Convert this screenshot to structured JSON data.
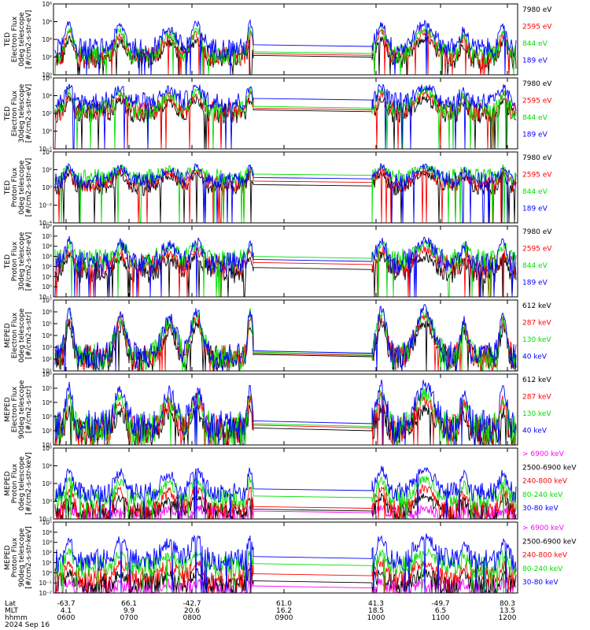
{
  "colors": {
    "black": "#000000",
    "red": "#ff0000",
    "green": "#00e000",
    "blue": "#0000ff",
    "magenta": "#ff00ff"
  },
  "x_axis": {
    "row_labels": [
      "Lat",
      "MLT",
      "hhmm"
    ],
    "date": "2024 Sep 16",
    "ticks": [
      {
        "lat": "-63.7",
        "mlt": "4.1",
        "hhmm": "0600"
      },
      {
        "lat": "66.1",
        "mlt": "9.9",
        "hhmm": "0700"
      },
      {
        "lat": "-42.7",
        "mlt": "20.6",
        "hhmm": "0800"
      },
      {
        "lat": "61.0",
        "mlt": "16.2",
        "hhmm": "0900"
      },
      {
        "lat": "41.3",
        "mlt": "18.5",
        "hhmm": "1000"
      },
      {
        "lat": "-49.7",
        "mlt": "6.5",
        "hhmm": "1100"
      },
      {
        "lat": "80.3",
        "mlt": "13.5",
        "hhmm": "1200"
      }
    ]
  },
  "chart_data": [
    {
      "type": "line",
      "ylabel": [
        "TED",
        "Electron Flux",
        "0deg telescope",
        "[#/cm2-s-str-eV]"
      ],
      "ylim_exp": [
        0,
        8
      ],
      "ytick_labels": [
        "10⁰",
        "10²",
        "10⁴",
        "10⁶",
        "10⁸"
      ],
      "series": [
        {
          "name": "7980 eV",
          "color": "black",
          "level": 1.8,
          "peak": 4.0
        },
        {
          "name": "2595 eV",
          "color": "red",
          "level": 2.0,
          "peak": 4.8
        },
        {
          "name": "844 eV",
          "color": "green",
          "level": 2.2,
          "peak": 5.2
        },
        {
          "name": "189 eV",
          "color": "blue",
          "level": 3.0,
          "peak": 5.8
        }
      ]
    },
    {
      "type": "line",
      "ylabel": [
        "TED",
        "Electron Flux",
        "30deg telescope",
        "[#/cm2-s-str-eV]"
      ],
      "ylim_exp": [
        -2,
        6
      ],
      "ytick_labels": [
        "10⁻²",
        "10⁰",
        "10²",
        "10⁴",
        "10⁶"
      ],
      "series": [
        {
          "name": "7980 eV",
          "color": "black",
          "level": 2.0,
          "peak": 3.6
        },
        {
          "name": "2595 eV",
          "color": "red",
          "level": 2.2,
          "peak": 4.2
        },
        {
          "name": "844 eV",
          "color": "green",
          "level": 2.4,
          "peak": 4.6
        },
        {
          "name": "189 eV",
          "color": "blue",
          "level": 3.3,
          "peak": 5.0
        }
      ]
    },
    {
      "type": "line",
      "ylabel": [
        "TED",
        "Proton Flux",
        "0deg telescope",
        "[#/cm2-s-str-eV]"
      ],
      "ylim_exp": [
        -4,
        6
      ],
      "ytick_labels": [
        "10⁻⁴",
        "10⁻²",
        "10⁰",
        "10²",
        "10⁴"
      ],
      "series": [
        {
          "name": "7980 eV",
          "color": "black",
          "level": 1.0,
          "peak": 3.0
        },
        {
          "name": "2595 eV",
          "color": "red",
          "level": 1.5,
          "peak": 3.5
        },
        {
          "name": "844 eV",
          "color": "green",
          "level": 2.5,
          "peak": 3.8
        },
        {
          "name": "189 eV",
          "color": "blue",
          "level": 2.0,
          "peak": 4.0
        }
      ]
    },
    {
      "type": "line",
      "ylabel": [
        "TED",
        "Proton Flux",
        "30deg telescope",
        "[#/cm2-s-str-eV]"
      ],
      "ylim_exp": [
        -1,
        6
      ],
      "ytick_labels": [
        "10⁻¹",
        "10⁰",
        "10¹",
        "10²",
        "10³",
        "10⁴",
        "10⁵",
        "10⁶"
      ],
      "series": [
        {
          "name": "7980 eV",
          "color": "black",
          "level": 1.5,
          "peak": 3.0
        },
        {
          "name": "2595 eV",
          "color": "red",
          "level": 2.0,
          "peak": 3.6
        },
        {
          "name": "844 eV",
          "color": "green",
          "level": 2.6,
          "peak": 4.2
        },
        {
          "name": "189 eV",
          "color": "blue",
          "level": 2.3,
          "peak": 4.6
        }
      ]
    },
    {
      "type": "line",
      "ylabel": [
        "MEPED",
        "Electron Flux",
        "0deg telescope",
        "[#/cm2-s-str]"
      ],
      "ylim_exp": [
        1,
        7
      ],
      "ytick_labels": [
        "10¹",
        "10²",
        "10³",
        "10⁴",
        "10⁵",
        "10⁶",
        "10⁷"
      ],
      "series": [
        {
          "name": "612 keV",
          "color": "black",
          "level": 2.0,
          "peak": 5.0
        },
        {
          "name": "287 keV",
          "color": "red",
          "level": 2.1,
          "peak": 5.6
        },
        {
          "name": "130 keV",
          "color": "green",
          "level": 2.2,
          "peak": 5.9
        },
        {
          "name": "40 keV",
          "color": "blue",
          "level": 2.3,
          "peak": 6.2
        }
      ]
    },
    {
      "type": "line",
      "ylabel": [
        "MEPED",
        "Electron Flux",
        "90deg telescope",
        "[#/cm2-s-str]"
      ],
      "ylim_exp": [
        1,
        6
      ],
      "ytick_labels": [
        "10¹",
        "10²",
        "10³",
        "10⁴",
        "10⁵",
        "10⁶"
      ],
      "series": [
        {
          "name": "612 keV",
          "color": "black",
          "level": 1.8,
          "peak": 3.5
        },
        {
          "name": "287 keV",
          "color": "red",
          "level": 2.0,
          "peak": 4.3
        },
        {
          "name": "130 keV",
          "color": "green",
          "level": 2.1,
          "peak": 4.6
        },
        {
          "name": "40 keV",
          "color": "blue",
          "level": 2.3,
          "peak": 5.2
        }
      ]
    },
    {
      "type": "line",
      "ylabel": [
        "MEPED",
        "Proton Flux",
        "0deg telescope",
        "[#/cm2-s-str-keV]"
      ],
      "ylim_exp": [
        -2,
        6
      ],
      "ytick_labels": [
        "10⁻²",
        "10⁰",
        "10²",
        "10⁴",
        "10⁶"
      ],
      "series": [
        {
          "name": "> 6900 keV",
          "color": "magenta",
          "level": -1.5,
          "peak": -0.8
        },
        {
          "name": "2500-6900 keV",
          "color": "black",
          "level": -1.3,
          "peak": 0.5
        },
        {
          "name": "240-800 keV",
          "color": "red",
          "level": -1.0,
          "peak": 1.5
        },
        {
          "name": "80-240 keV",
          "color": "green",
          "level": 0.2,
          "peak": 2.5
        },
        {
          "name": "30-80 keV",
          "color": "blue",
          "level": 1.0,
          "peak": 3.6
        }
      ]
    },
    {
      "type": "line",
      "ylabel": [
        "MEPED",
        "Proton Flux",
        "90deg telescope",
        "[#/cm2-s-str-keV]"
      ],
      "ylim_exp": [
        -2,
        5
      ],
      "ytick_labels": [
        "10⁻²",
        "10⁻¹",
        "10⁰",
        "10¹",
        "10²",
        "10³",
        "10⁴",
        "10⁵"
      ],
      "series": [
        {
          "name": "> 6900 keV",
          "color": "magenta",
          "level": -1.7,
          "peak": -1.0
        },
        {
          "name": "2500-6900 keV",
          "color": "black",
          "level": -1.2,
          "peak": 0.0
        },
        {
          "name": "240-800 keV",
          "color": "red",
          "level": -0.5,
          "peak": 1.0
        },
        {
          "name": "80-240 keV",
          "color": "green",
          "level": 0.5,
          "peak": 2.0
        },
        {
          "name": "30-80 keV",
          "color": "blue",
          "level": 1.2,
          "peak": 3.5
        }
      ]
    }
  ]
}
